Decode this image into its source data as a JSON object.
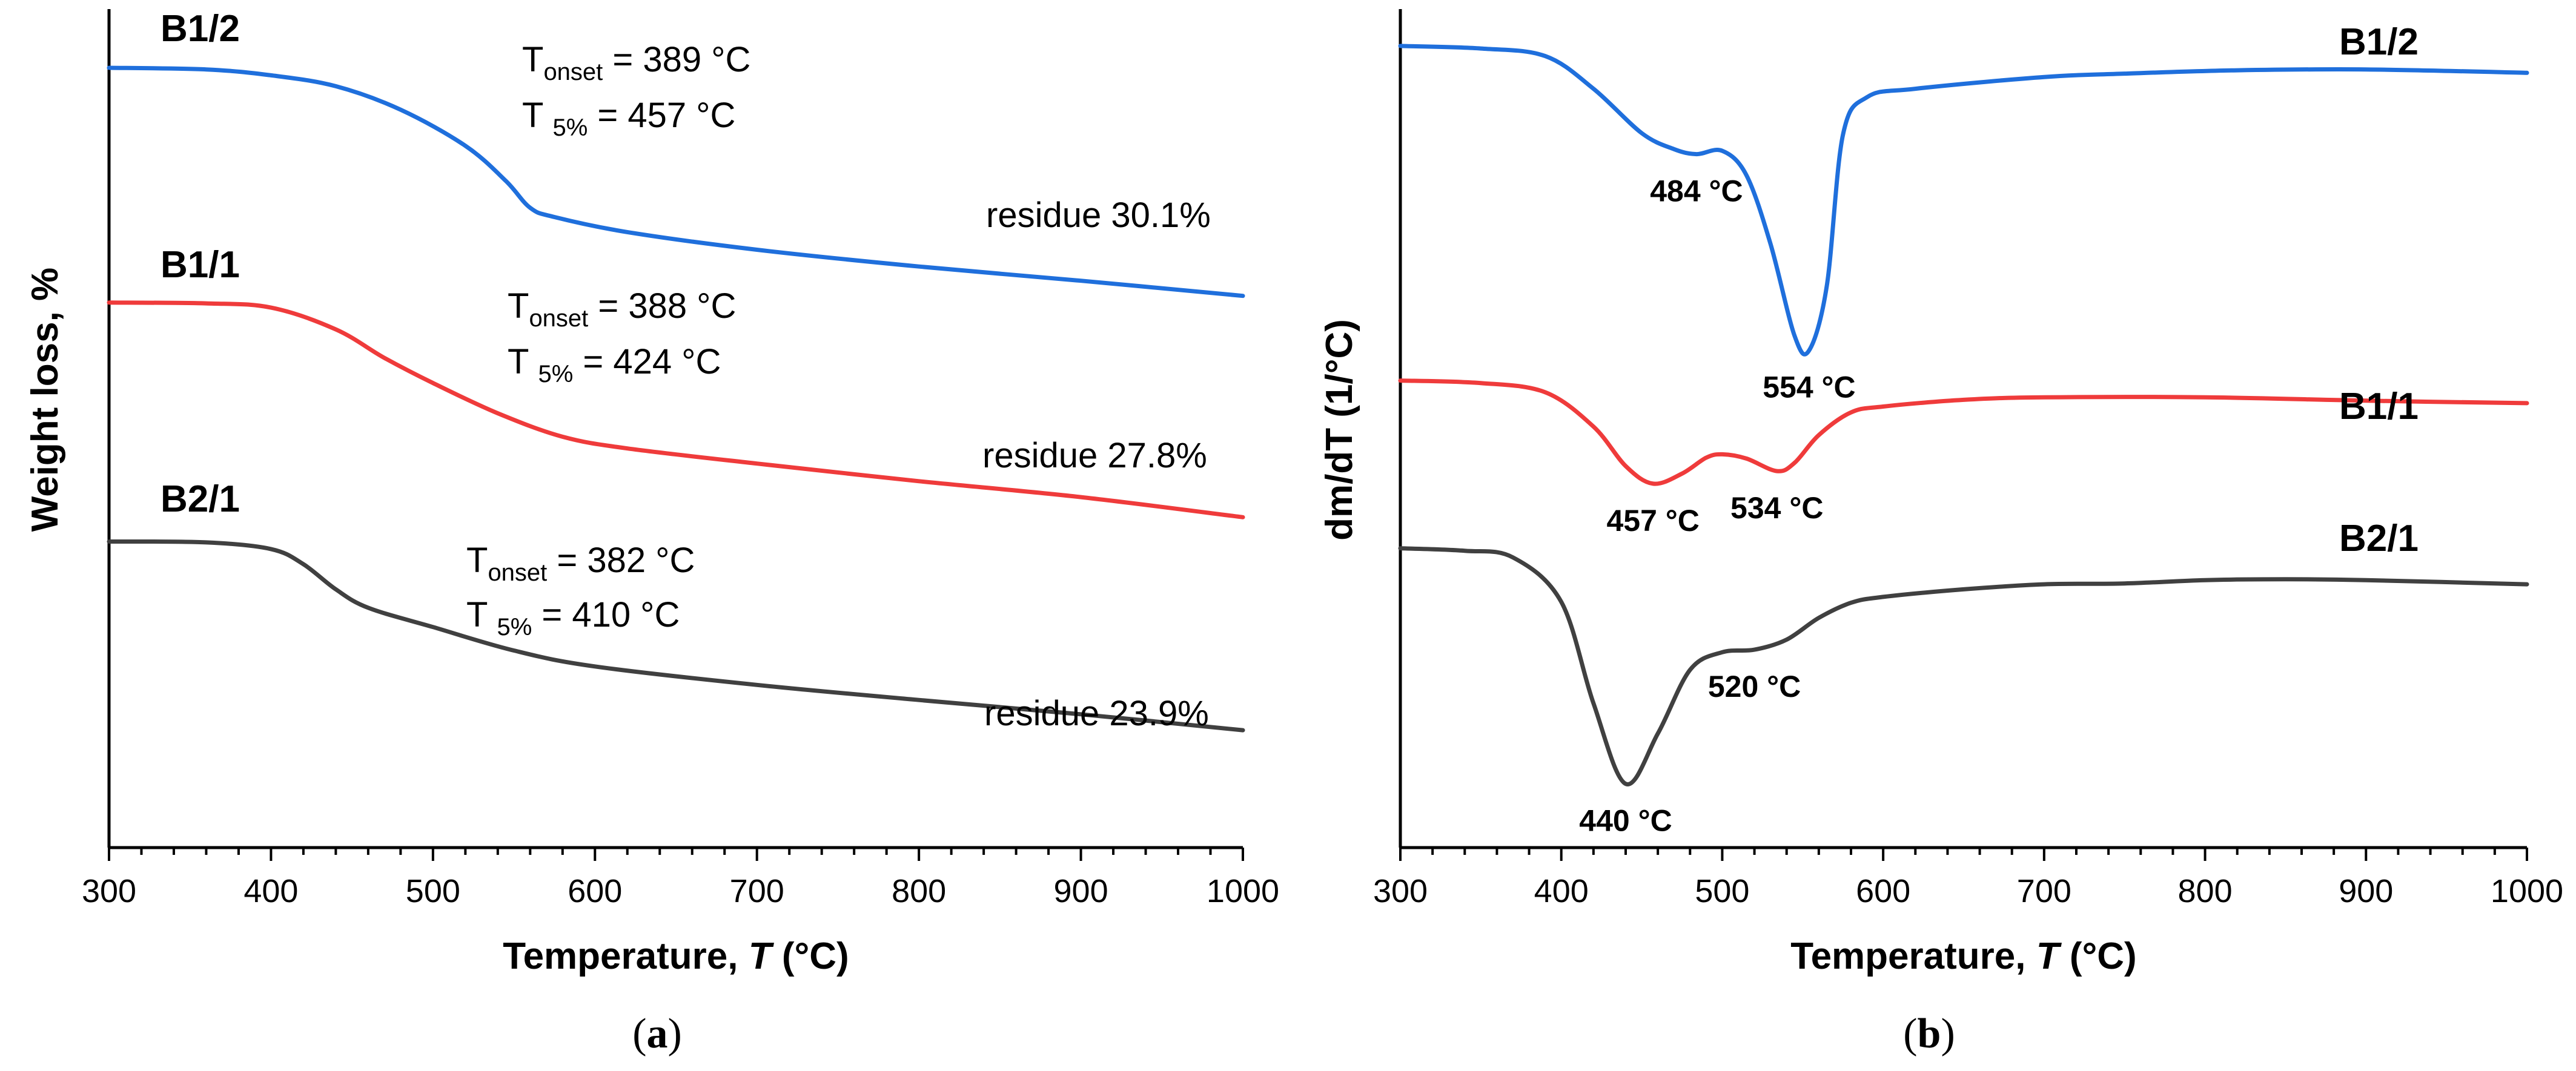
{
  "chart_data": [
    {
      "type": "line",
      "panel": "(a)",
      "panel_letter": "a",
      "xlabel_main": "Temperature, ",
      "xlabel_var": "T",
      "xlabel_unit": " (°C)",
      "ylabel": "Weight loss, %",
      "xlim": [
        300,
        1000
      ],
      "xticks": [
        "300",
        "400",
        "500",
        "600",
        "700",
        "800",
        "900",
        "1000"
      ],
      "ylim": [
        0,
        100
      ],
      "series": [
        {
          "name": "B1/2",
          "color": "#1f6fdc",
          "x": [
            300,
            360,
            400,
            440,
            480,
            520,
            545,
            560,
            575,
            620,
            700,
            800,
            900,
            1000
          ],
          "y": [
            93,
            92.8,
            92.1,
            90.8,
            88,
            83.7,
            79.5,
            76.3,
            75.2,
            73.4,
            71.3,
            69.3,
            67.6,
            65.8
          ],
          "onset_label": "T",
          "onset_sub": "onset",
          "onset_value": " = 389 °C",
          "t5_label": "T ",
          "t5_sub": "5%",
          "t5_value": " = 457 °C",
          "residue": "residue 30.1%"
        },
        {
          "name": "B1/1",
          "color": "#ef3b3b",
          "x": [
            300,
            360,
            400,
            440,
            470,
            500,
            540,
            580,
            620,
            700,
            800,
            900,
            1000
          ],
          "y": [
            65,
            64.9,
            64.4,
            61.8,
            58.4,
            55.4,
            51.8,
            49,
            47.6,
            45.8,
            43.7,
            41.8,
            39.4
          ],
          "onset_label": "T",
          "onset_sub": "onset",
          "onset_value": " = 388 °C",
          "t5_label": "T ",
          "t5_sub": "5%",
          "t5_value": " = 424 °C",
          "residue": "residue 27.8%"
        },
        {
          "name": "B2/1",
          "color": "#404040",
          "x": [
            300,
            360,
            400,
            420,
            440,
            460,
            500,
            550,
            600,
            700,
            800,
            900,
            1000
          ],
          "y": [
            36.5,
            36.4,
            35.6,
            33.8,
            30.8,
            28.6,
            26.3,
            23.5,
            21.6,
            19.4,
            17.6,
            15.9,
            14
          ],
          "onset_label": "T",
          "onset_sub": "onset",
          "onset_value": " = 382 °C",
          "t5_label": "T ",
          "t5_sub": "5%",
          "t5_value": " = 410 °C",
          "residue": "residue 23.9%"
        }
      ]
    },
    {
      "type": "line",
      "panel": "(b)",
      "panel_letter": "b",
      "xlabel_main": "Temperature, ",
      "xlabel_var": "T",
      "xlabel_unit": " (°C)",
      "ylabel": "dm/dT (1/°C)",
      "xlim": [
        300,
        1000
      ],
      "xticks": [
        "300",
        "400",
        "500",
        "600",
        "700",
        "800",
        "900",
        "1000"
      ],
      "ylim": [
        0,
        100
      ],
      "series": [
        {
          "name": "B1/2",
          "color": "#1f6fdc",
          "x": [
            300,
            350,
            390,
            420,
            450,
            470,
            484,
            500,
            515,
            530,
            545,
            554,
            565,
            575,
            590,
            620,
            700,
            750,
            820,
            900,
            1000
          ],
          "y": [
            95.6,
            95.3,
            94.4,
            90.5,
            85.2,
            83.3,
            82.7,
            83.1,
            80.2,
            72,
            61,
            59.3,
            67,
            85,
            89.5,
            90.5,
            91.9,
            92.3,
            92.7,
            92.8,
            92.4
          ],
          "peaks": [
            {
              "label": "484 °C",
              "x": 484,
              "y": 82.7
            },
            {
              "label": "554 °C",
              "x": 554,
              "y": 59.3
            }
          ]
        },
        {
          "name": "B1/1",
          "color": "#ef3b3b",
          "x": [
            300,
            350,
            390,
            420,
            440,
            457,
            475,
            490,
            500,
            515,
            534,
            545,
            560,
            580,
            600,
            650,
            700,
            800,
            900,
            1000
          ],
          "y": [
            55.7,
            55.4,
            54.3,
            50.2,
            45.5,
            43.4,
            44.6,
            46.5,
            46.9,
            46.4,
            44.9,
            45.9,
            49.2,
            51.9,
            52.6,
            53.4,
            53.7,
            53.7,
            53.3,
            53
          ],
          "peaks": [
            {
              "label": "457 °C",
              "x": 457,
              "y": 43.4
            },
            {
              "label": "534 °C",
              "x": 534,
              "y": 44.9
            }
          ]
        },
        {
          "name": "B2/1",
          "color": "#404040",
          "x": [
            300,
            340,
            370,
            400,
            420,
            440,
            460,
            480,
            500,
            520,
            540,
            560,
            580,
            600,
            650,
            700,
            750,
            800,
            850,
            900,
            1000
          ],
          "y": [
            35.7,
            35.4,
            34.6,
            29.3,
            17.2,
            7.6,
            13.6,
            21.2,
            23.3,
            23.6,
            24.8,
            27.4,
            29.2,
            29.9,
            30.8,
            31.4,
            31.5,
            31.9,
            32,
            31.9,
            31.4
          ],
          "peaks": [
            {
              "label": "440 °C",
              "x": 440,
              "y": 7.6
            },
            {
              "label": "520 °C",
              "x": 520,
              "y": 23.6
            }
          ]
        }
      ]
    }
  ]
}
